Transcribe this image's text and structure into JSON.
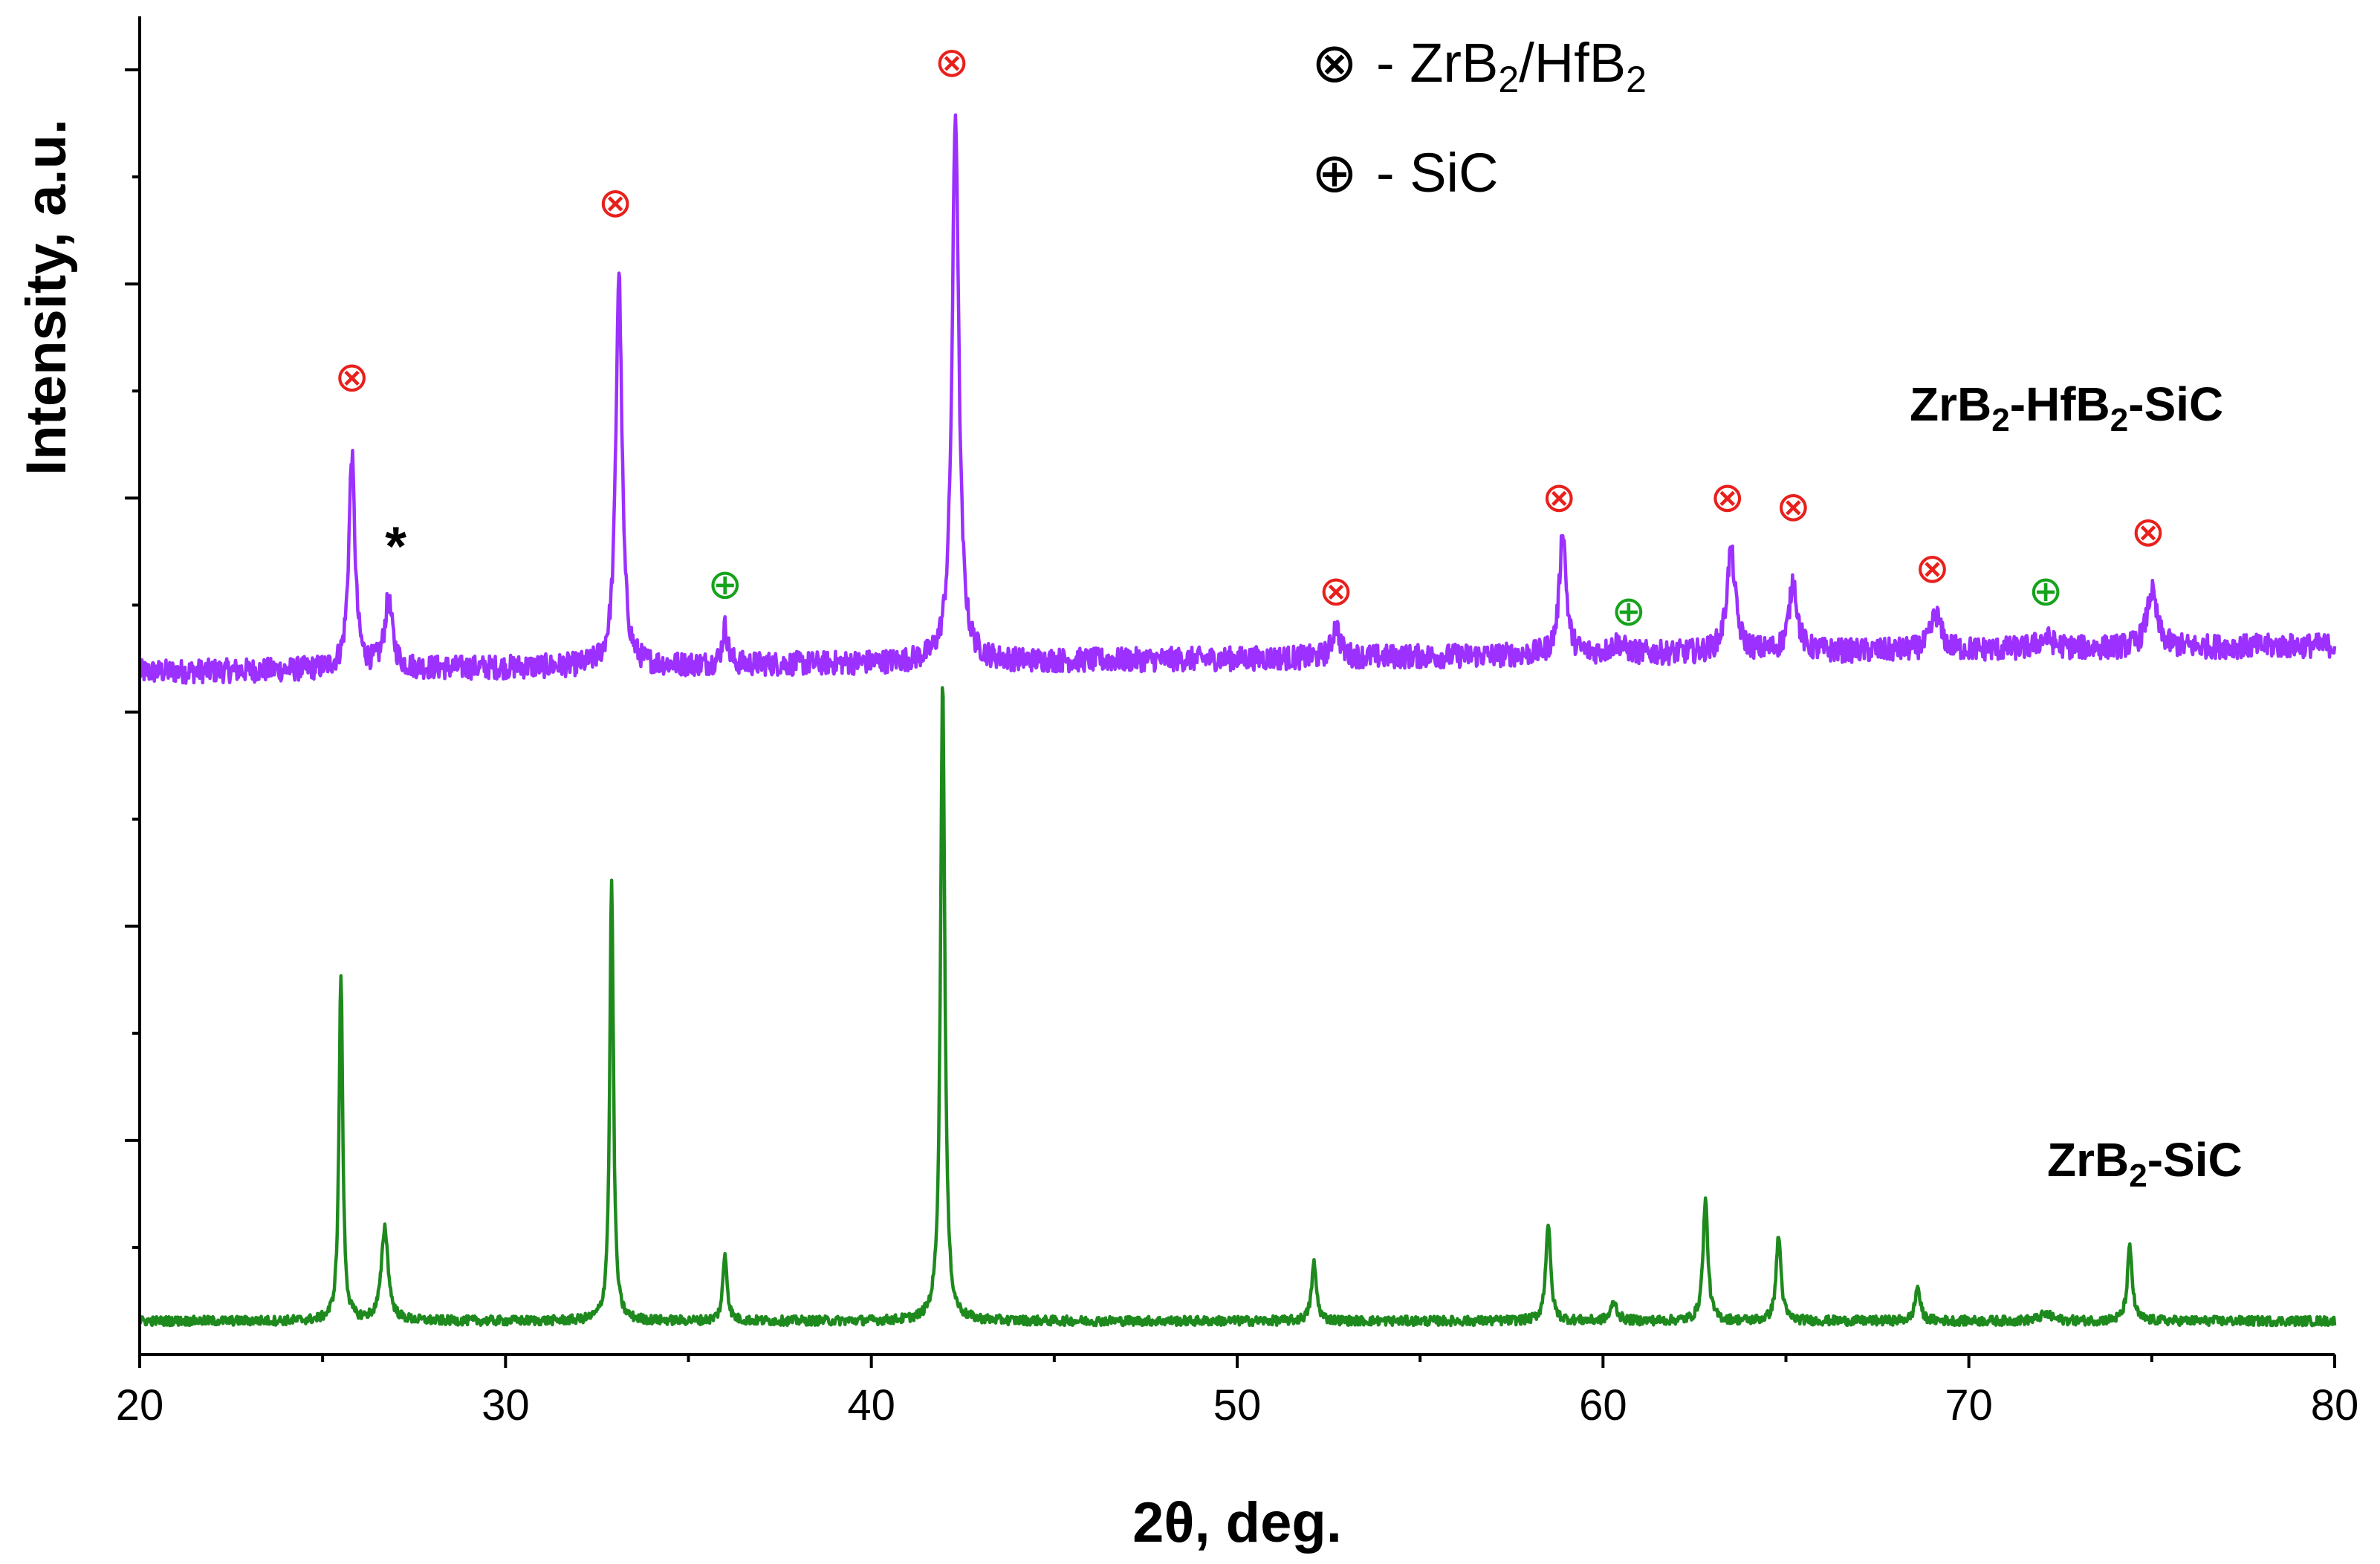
{
  "chart_data": {
    "type": "line",
    "xlabel": "2θ, deg.",
    "ylabel": "Intensity, a.u.",
    "xlim": [
      20,
      80
    ],
    "ylim": [
      0,
      100
    ],
    "xticks": [
      20,
      30,
      40,
      50,
      60,
      70,
      80
    ],
    "grid": false,
    "legend": {
      "placement": "top-center",
      "entries": [
        {
          "symbol": "⊗",
          "label_main": "- ZrB",
          "sub1": "2",
          "label_mid": "/HfB",
          "sub2": "2",
          "color": "#e8201c"
        },
        {
          "symbol": "⊕",
          "label_main": "- SiC",
          "color": "#16a31c"
        }
      ]
    },
    "series": [
      {
        "id": "zrb2-hfb2-sic",
        "label_parts": [
          "ZrB",
          "2",
          "-HfB",
          "2",
          "-SiC"
        ],
        "color": "#9b30ff",
        "baseline": 51,
        "slope": 0.033,
        "peaks": [
          [
            25.8,
            16.0,
            0.1
          ],
          [
            26.8,
            5.0,
            0.13
          ],
          [
            33.1,
            29.5,
            0.1
          ],
          [
            36.0,
            2.8,
            0.09
          ],
          [
            42.3,
            41.0,
            0.11
          ],
          [
            52.7,
            2.4,
            0.12
          ],
          [
            58.9,
            9.3,
            0.11
          ],
          [
            60.4,
            0.8,
            0.2
          ],
          [
            63.5,
            7.6,
            0.14
          ],
          [
            65.2,
            5.3,
            0.13
          ],
          [
            69.1,
            2.7,
            0.16
          ],
          [
            72.1,
            0.8,
            0.25
          ],
          [
            75.0,
            4.2,
            0.16
          ]
        ]
      },
      {
        "id": "zrb2-sic",
        "label_parts": [
          "ZrB",
          "2",
          "-SiC"
        ],
        "color": "#1e8a1e",
        "baseline": 2.5,
        "slope": 0.0,
        "peaks": [
          [
            25.5,
            26.0,
            0.06
          ],
          [
            26.7,
            7.0,
            0.11
          ],
          [
            32.9,
            33.0,
            0.06
          ],
          [
            36.0,
            5.0,
            0.07
          ],
          [
            41.95,
            48.0,
            0.07
          ],
          [
            52.1,
            4.3,
            0.08
          ],
          [
            58.5,
            7.3,
            0.08
          ],
          [
            60.3,
            1.4,
            0.1
          ],
          [
            62.8,
            9.0,
            0.08
          ],
          [
            64.8,
            6.4,
            0.08
          ],
          [
            68.6,
            2.6,
            0.08
          ],
          [
            72.1,
            0.5,
            0.2
          ],
          [
            74.4,
            5.5,
            0.08
          ]
        ]
      }
    ],
    "markers": [
      {
        "symbol": "⊗",
        "x": 25.8,
        "y": 72,
        "color": "#e8201c"
      },
      {
        "symbol": "*",
        "x": 27.0,
        "y": 59,
        "color": "#000000"
      },
      {
        "symbol": "⊗",
        "x": 33.0,
        "y": 85,
        "color": "#e8201c"
      },
      {
        "symbol": "⊕",
        "x": 36.0,
        "y": 56.5,
        "color": "#16a31c"
      },
      {
        "symbol": "⊗",
        "x": 42.2,
        "y": 95.5,
        "color": "#e8201c"
      },
      {
        "symbol": "⊗",
        "x": 52.7,
        "y": 56,
        "color": "#e8201c"
      },
      {
        "symbol": "⊗",
        "x": 58.8,
        "y": 63,
        "color": "#e8201c"
      },
      {
        "symbol": "⊕",
        "x": 60.7,
        "y": 54.5,
        "color": "#16a31c"
      },
      {
        "symbol": "⊗",
        "x": 63.4,
        "y": 63,
        "color": "#e8201c"
      },
      {
        "symbol": "⊗",
        "x": 65.2,
        "y": 62.3,
        "color": "#e8201c"
      },
      {
        "symbol": "⊗",
        "x": 69.0,
        "y": 57.7,
        "color": "#e8201c"
      },
      {
        "symbol": "⊕",
        "x": 72.1,
        "y": 56,
        "color": "#16a31c"
      },
      {
        "symbol": "⊗",
        "x": 74.9,
        "y": 60.4,
        "color": "#e8201c"
      }
    ]
  }
}
